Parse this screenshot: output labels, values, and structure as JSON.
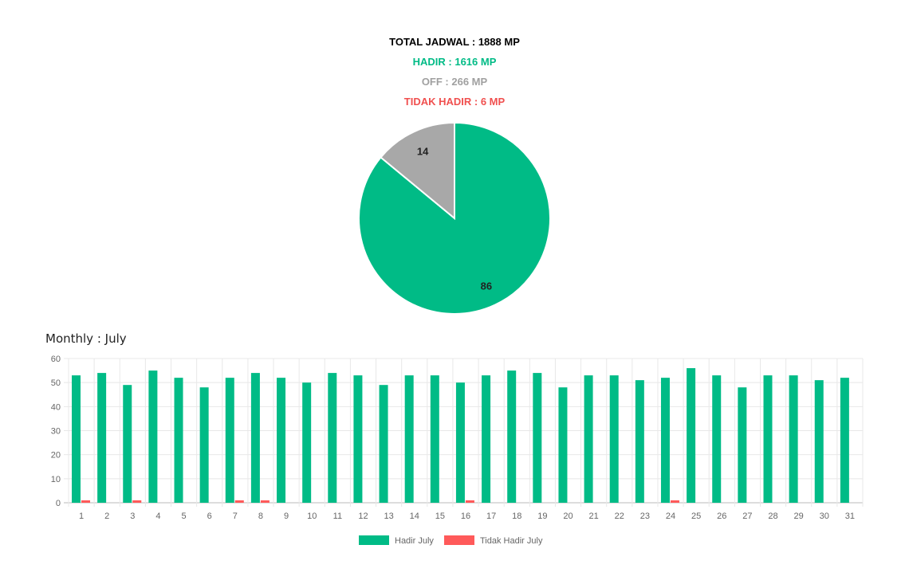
{
  "summary": {
    "total": "TOTAL JADWAL : 1888 MP",
    "hadir": "HADIR : 1616 MP",
    "off": "OFF : 266 MP",
    "tidak_hadir": "TIDAK HADIR : 6 MP"
  },
  "colors": {
    "hadir": "#00bb86",
    "off": "#a8a8a8",
    "tidak_hadir": "#ff5a5a"
  },
  "chart_data": [
    {
      "type": "pie",
      "slices": [
        {
          "label": "86",
          "value": 86,
          "color": "#00bb86"
        },
        {
          "label": "14",
          "value": 14,
          "color": "#a8a8a8"
        }
      ]
    },
    {
      "type": "bar",
      "title": "Monthly : July",
      "categories": [
        "1",
        "2",
        "3",
        "4",
        "5",
        "6",
        "7",
        "8",
        "9",
        "10",
        "11",
        "12",
        "13",
        "14",
        "15",
        "16",
        "17",
        "18",
        "19",
        "20",
        "21",
        "22",
        "23",
        "24",
        "25",
        "26",
        "27",
        "28",
        "29",
        "30",
        "31"
      ],
      "series": [
        {
          "name": "Hadir July",
          "color": "#00bb86",
          "values": [
            53,
            54,
            49,
            55,
            52,
            48,
            52,
            54,
            52,
            50,
            54,
            53,
            49,
            53,
            53,
            50,
            53,
            55,
            54,
            48,
            53,
            53,
            51,
            52,
            56,
            53,
            48,
            53,
            53,
            51,
            52
          ]
        },
        {
          "name": "Tidak Hadir July",
          "color": "#ff5a5a",
          "values": [
            1,
            0,
            1,
            0,
            0,
            0,
            1,
            1,
            0,
            0,
            0,
            0,
            0,
            0,
            0,
            1,
            0,
            0,
            0,
            0,
            0,
            0,
            0,
            1,
            0,
            0,
            0,
            0,
            0,
            0,
            0
          ]
        }
      ],
      "ylim": [
        0,
        60
      ],
      "yticks": [
        0,
        10,
        20,
        30,
        40,
        50,
        60
      ],
      "grid": true,
      "legend": "bottom"
    }
  ]
}
